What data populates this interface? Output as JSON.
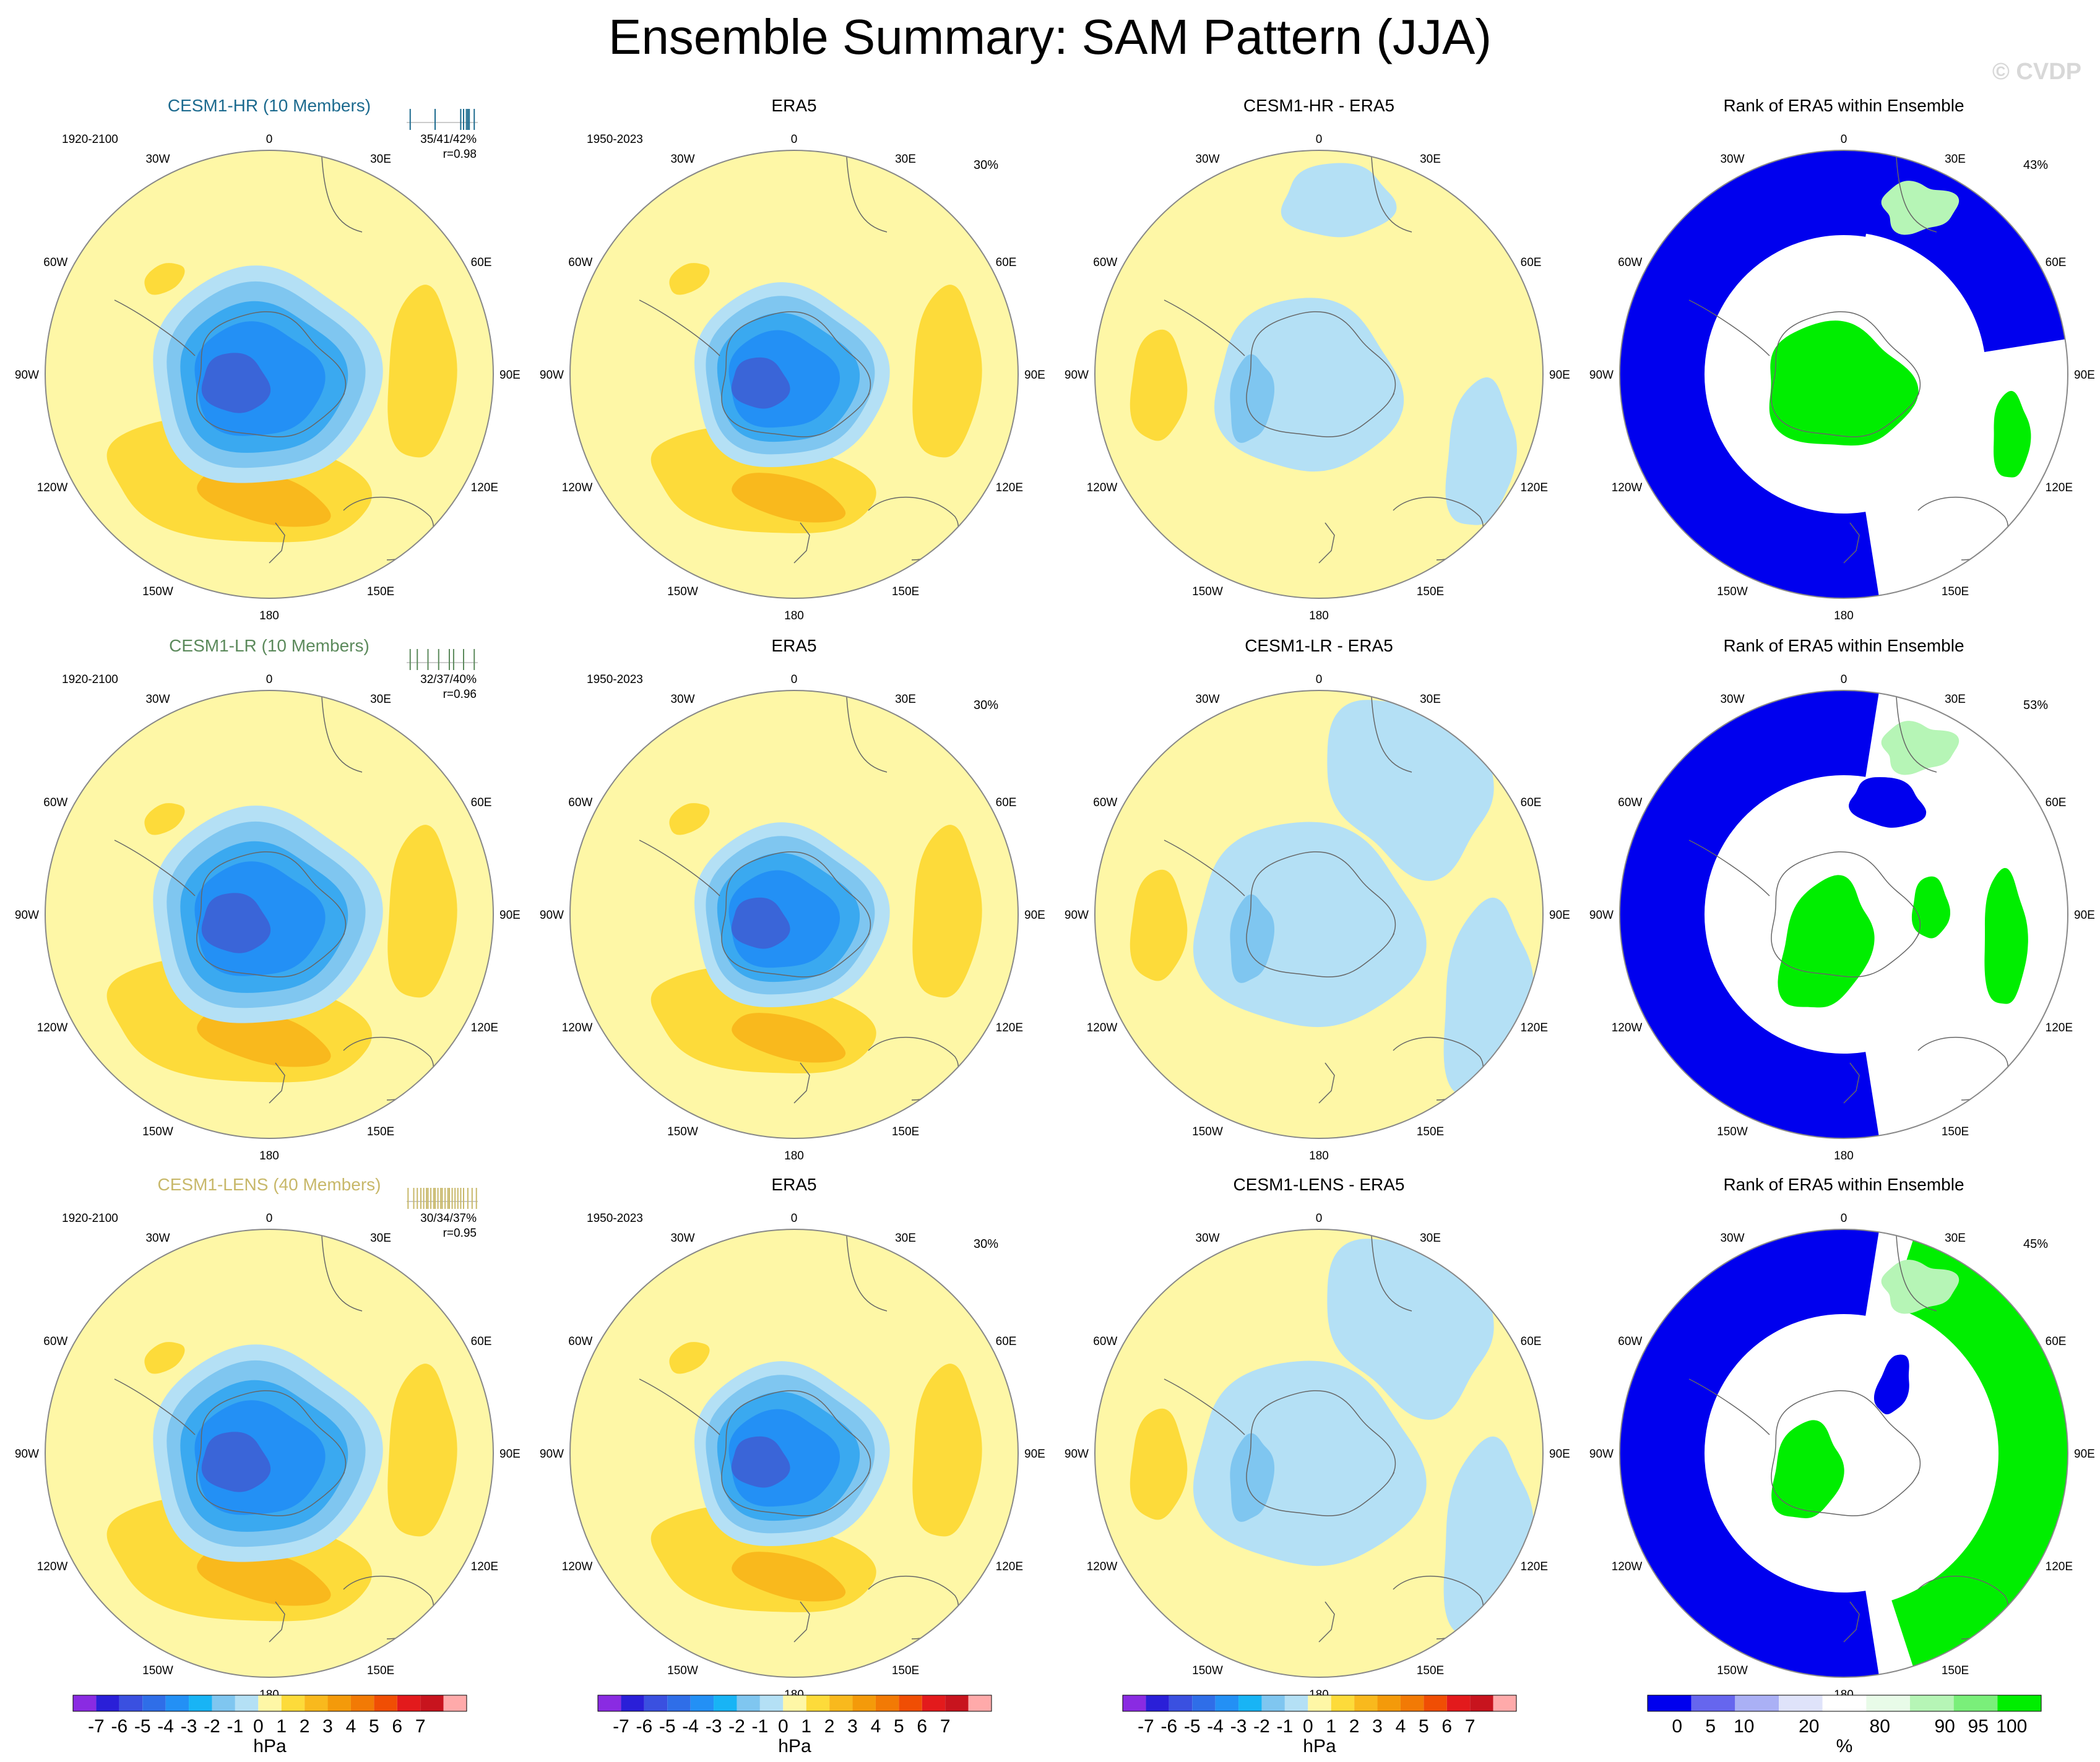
{
  "title": "Ensemble Summary: SAM Pattern (JJA)",
  "watermark": "© CVDP",
  "colors": {
    "pale_yellow": "#fef7a6",
    "light_yellow_orange": "#fddb3a",
    "orange": "#f9b91d",
    "dark_orange": "#f49a0a",
    "pale_blue": "#b4e0f5",
    "light_blue": "#7fc6f0",
    "mid_blue": "#3aa9f0",
    "blue": "#2390f5",
    "dark_blue": "#3a65d8",
    "rank_blue": "#0000ee",
    "rank_green": "#00ee00",
    "rank_lightgreen": "#b6f5b6"
  },
  "longitude_labels": [
    "0",
    "30E",
    "60E",
    "90E",
    "120E",
    "150E",
    "180",
    "150W",
    "120W",
    "90W",
    "60W",
    "30W"
  ],
  "rows": [
    {
      "model": {
        "title": "CESM1-HR (10 Members)",
        "title_color": "#1d6b8f",
        "period": "1920-2100",
        "stats": "35/41/42%",
        "corr": "r=0.98",
        "member_ticks": [
          0.05,
          0.4,
          0.76,
          0.8,
          0.84,
          0.86,
          0.88,
          0.95
        ]
      },
      "obs": {
        "title": "ERA5",
        "period": "1950-2023",
        "pct": "30%"
      },
      "diff": {
        "title": "CESM1-HR - ERA5"
      },
      "rank": {
        "title": "Rank of ERA5 within Ensemble",
        "pct": "43%"
      }
    },
    {
      "model": {
        "title": "CESM1-LR (10 Members)",
        "title_color": "#5c8a5c",
        "period": "1920-2100",
        "stats": "32/37/40%",
        "corr": "r=0.96",
        "member_ticks": [
          0.05,
          0.15,
          0.3,
          0.45,
          0.6,
          0.66,
          0.8,
          0.95
        ]
      },
      "obs": {
        "title": "ERA5",
        "period": "1950-2023",
        "pct": "30%"
      },
      "diff": {
        "title": "CESM1-LR - ERA5"
      },
      "rank": {
        "title": "Rank of ERA5 within Ensemble",
        "pct": "53%"
      }
    },
    {
      "model": {
        "title": "CESM1-LENS (40 Members)",
        "title_color": "#c8b86a",
        "period": "1920-2100",
        "stats": "30/34/37%",
        "corr": "r=0.95",
        "member_ticks": [
          0.02,
          0.1,
          0.15,
          0.2,
          0.24,
          0.28,
          0.3,
          0.34,
          0.38,
          0.4,
          0.44,
          0.48,
          0.5,
          0.54,
          0.58,
          0.6,
          0.64,
          0.68,
          0.72,
          0.76,
          0.8,
          0.86,
          0.92,
          0.98
        ]
      },
      "obs": {
        "title": "ERA5",
        "period": "1950-2023",
        "pct": "30%"
      },
      "diff": {
        "title": "CESM1-LENS - ERA5"
      },
      "rank": {
        "title": "Rank of ERA5 within Ensemble",
        "pct": "45%"
      }
    }
  ],
  "colorbars": {
    "hpa": {
      "unit": "hPa",
      "labels": [
        "-7",
        "-6",
        "-5",
        "-4",
        "-3",
        "-2",
        "-1",
        "0",
        "1",
        "2",
        "3",
        "4",
        "5",
        "6",
        "7"
      ],
      "colors": [
        "#8a2be2",
        "#2a1fd8",
        "#3a50e0",
        "#2f6ee8",
        "#2390f5",
        "#18b4f5",
        "#7fc6f0",
        "#b4e0f5",
        "#fef7a6",
        "#fddb3a",
        "#f9b91d",
        "#f49a0a",
        "#f27a05",
        "#f04e04",
        "#e31a1c",
        "#c8141e",
        "#ffaaaa"
      ]
    },
    "rank": {
      "unit": "%",
      "labels": [
        "0",
        "5",
        "10",
        "20",
        "80",
        "90",
        "95",
        "100"
      ],
      "colors": [
        "#0000ee",
        "#6666ee",
        "#aab0f5",
        "#dfe3fa",
        "#ffffff",
        "#e8fbe8",
        "#b6f5b6",
        "#7aef7a",
        "#00ee00"
      ]
    }
  }
}
